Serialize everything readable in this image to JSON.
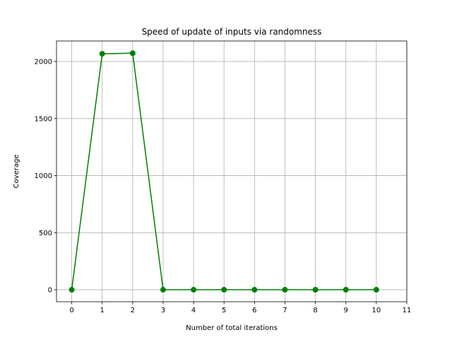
{
  "chart_data": {
    "type": "line",
    "title": "Speed of update of inputs via randomness",
    "xlabel": "Number of total iterations",
    "ylabel": "Coverage",
    "x": [
      0,
      1,
      2,
      3,
      4,
      5,
      6,
      7,
      8,
      9,
      10
    ],
    "series": [
      {
        "values": [
          0,
          2068,
          2073,
          0,
          0,
          0,
          0,
          0,
          0,
          0,
          0
        ],
        "color": "#008000",
        "marker": "circle"
      }
    ],
    "xlim": [
      -0.5,
      11
    ],
    "ylim": [
      -105,
      2180
    ],
    "xticks": [
      0,
      1,
      2,
      3,
      4,
      5,
      6,
      7,
      8,
      9,
      10,
      11
    ],
    "yticks": [
      0,
      500,
      1000,
      1500,
      2000
    ],
    "xtick_labels": [
      "0",
      "1",
      "2",
      "3",
      "4",
      "5",
      "6",
      "7",
      "8",
      "9",
      "10",
      "11"
    ],
    "ytick_labels": [
      "0",
      "500",
      "1000",
      "1500",
      "2000"
    ],
    "grid": true,
    "legend": false
  }
}
